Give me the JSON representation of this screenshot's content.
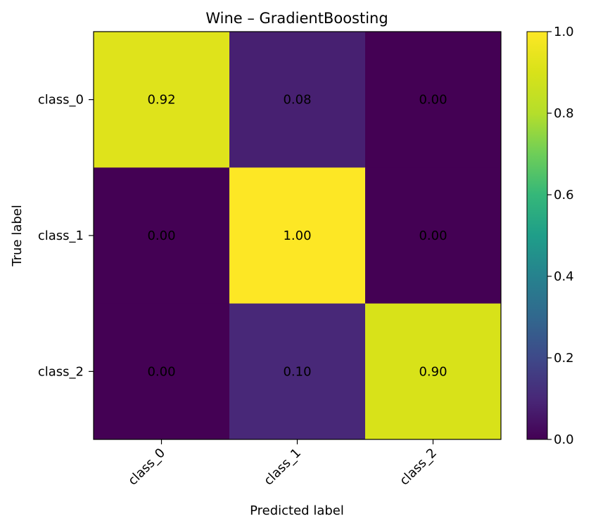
{
  "chart_data": {
    "type": "heatmap",
    "title": "Wine – GradientBoosting",
    "xlabel": "Predicted label",
    "ylabel": "True label",
    "x_categories": [
      "class_0",
      "class_1",
      "class_2"
    ],
    "y_categories": [
      "class_0",
      "class_1",
      "class_2"
    ],
    "values": [
      [
        0.92,
        0.08,
        0.0
      ],
      [
        0.0,
        1.0,
        0.0
      ],
      [
        0.0,
        0.1,
        0.9
      ]
    ],
    "value_labels": [
      [
        "0.92",
        "0.08",
        "0.00"
      ],
      [
        "0.00",
        "1.00",
        "0.00"
      ],
      [
        "0.00",
        "0.10",
        "0.90"
      ]
    ],
    "colormap": "viridis",
    "colorbar": {
      "range": [
        0.0,
        1.0
      ],
      "ticks": [
        0.0,
        0.2,
        0.4,
        0.6,
        0.8,
        1.0
      ],
      "tick_labels": [
        "0.0",
        "0.2",
        "0.4",
        "0.6",
        "0.8",
        "1.0"
      ]
    },
    "grid": false
  }
}
